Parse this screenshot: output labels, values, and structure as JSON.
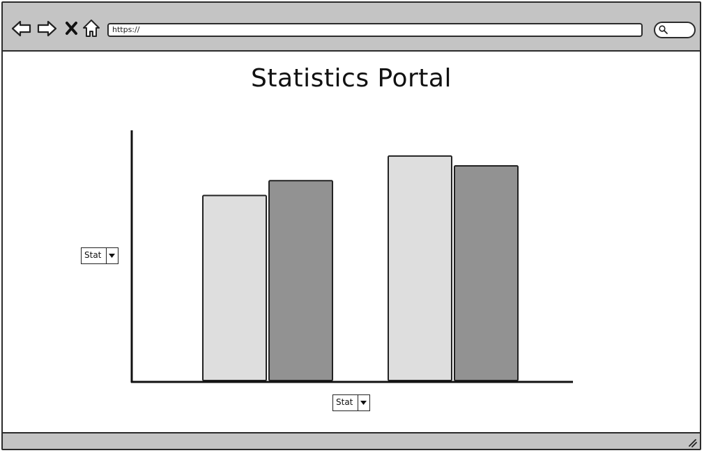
{
  "browser": {
    "url": "https://",
    "icons": {
      "back": "back-arrow-icon",
      "forward": "forward-arrow-icon",
      "stop": "close-x-icon",
      "home": "home-icon",
      "search": "search-icon",
      "resize": "resize-grip-icon"
    }
  },
  "page": {
    "title": "Statistics Portal"
  },
  "controls": {
    "y_select": {
      "value": "Stat"
    },
    "x_select": {
      "value": "Stat"
    }
  },
  "colors": {
    "chrome": "#c4c4c4",
    "series_light": "#dedede",
    "series_dark": "#929292",
    "stroke": "#222222"
  },
  "chart_data": {
    "type": "bar",
    "categories": [
      "",
      ""
    ],
    "series": [
      {
        "values": [
          75,
          91
        ]
      },
      {
        "values": [
          81,
          87
        ]
      }
    ],
    "ylim": [
      0,
      100
    ],
    "xlabel": "",
    "ylabel": "",
    "grid": false
  }
}
